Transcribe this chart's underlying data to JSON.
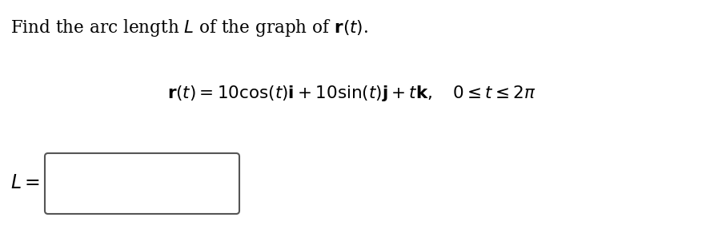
{
  "background_color": "#ffffff",
  "title_line": "Find the arc length $L$ of the graph of $\\mathbf{r}(t)$.",
  "equation_line": "$\\mathbf{r}(t) = 10\\cos(t)\\mathbf{i} + 10\\sin(t)\\mathbf{j} + t\\mathbf{k}, \\quad 0 \\leq t \\leq 2\\pi$",
  "label_text": "$L =$",
  "title_fontsize": 15.5,
  "eq_fontsize": 15.5,
  "label_fontsize": 17,
  "text_color": "#000000",
  "figwidth": 8.78,
  "figheight": 3.02,
  "dpi": 100
}
